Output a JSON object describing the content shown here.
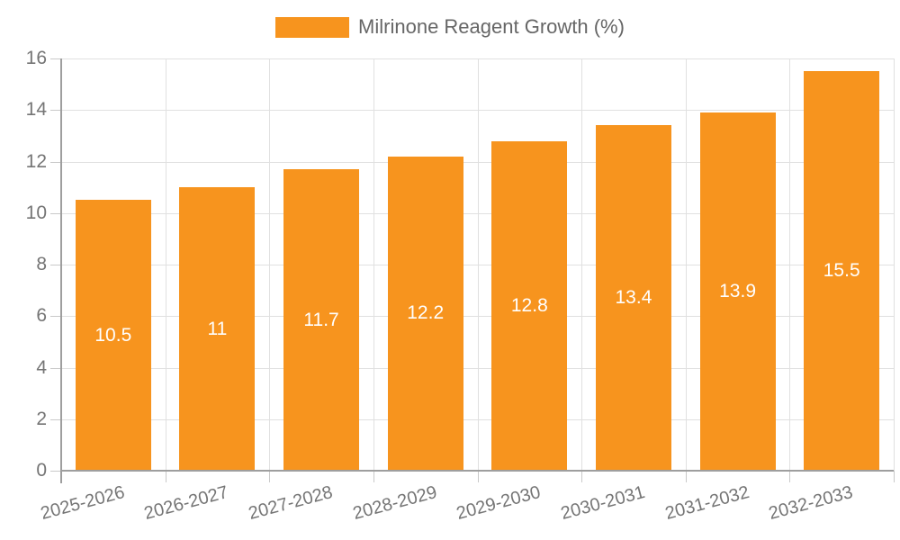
{
  "legend": {
    "label": "Milrinone Reagent Growth (%)"
  },
  "colors": {
    "bar": "#f7941e",
    "bar_label_text": "#ffffff",
    "axis_text": "#757575",
    "legend_text": "#666666",
    "gridline": "#e0e0e0",
    "axis_line": "#9e9e9e",
    "tick": "#c9c9c9",
    "background": "#ffffff"
  },
  "chart_data": {
    "type": "bar",
    "title": "Milrinone Reagent Growth (%)",
    "series_name": "Milrinone Reagent Growth (%)",
    "categories": [
      "2025-2026",
      "2026-2027",
      "2027-2028",
      "2028-2029",
      "2029-2030",
      "2030-2031",
      "2031-2032",
      "2032-2033"
    ],
    "values": [
      10.5,
      11,
      11.7,
      12.2,
      12.8,
      13.4,
      13.9,
      15.5
    ],
    "value_labels": [
      "10.5",
      "11",
      "11.7",
      "12.2",
      "12.8",
      "13.4",
      "13.9",
      "15.5"
    ],
    "xlabel": "",
    "ylabel": "",
    "ylim": [
      0,
      16
    ],
    "yticks": [
      0,
      2,
      4,
      6,
      8,
      10,
      12,
      14,
      16
    ],
    "grid": true,
    "legend_position": "top-center"
  }
}
